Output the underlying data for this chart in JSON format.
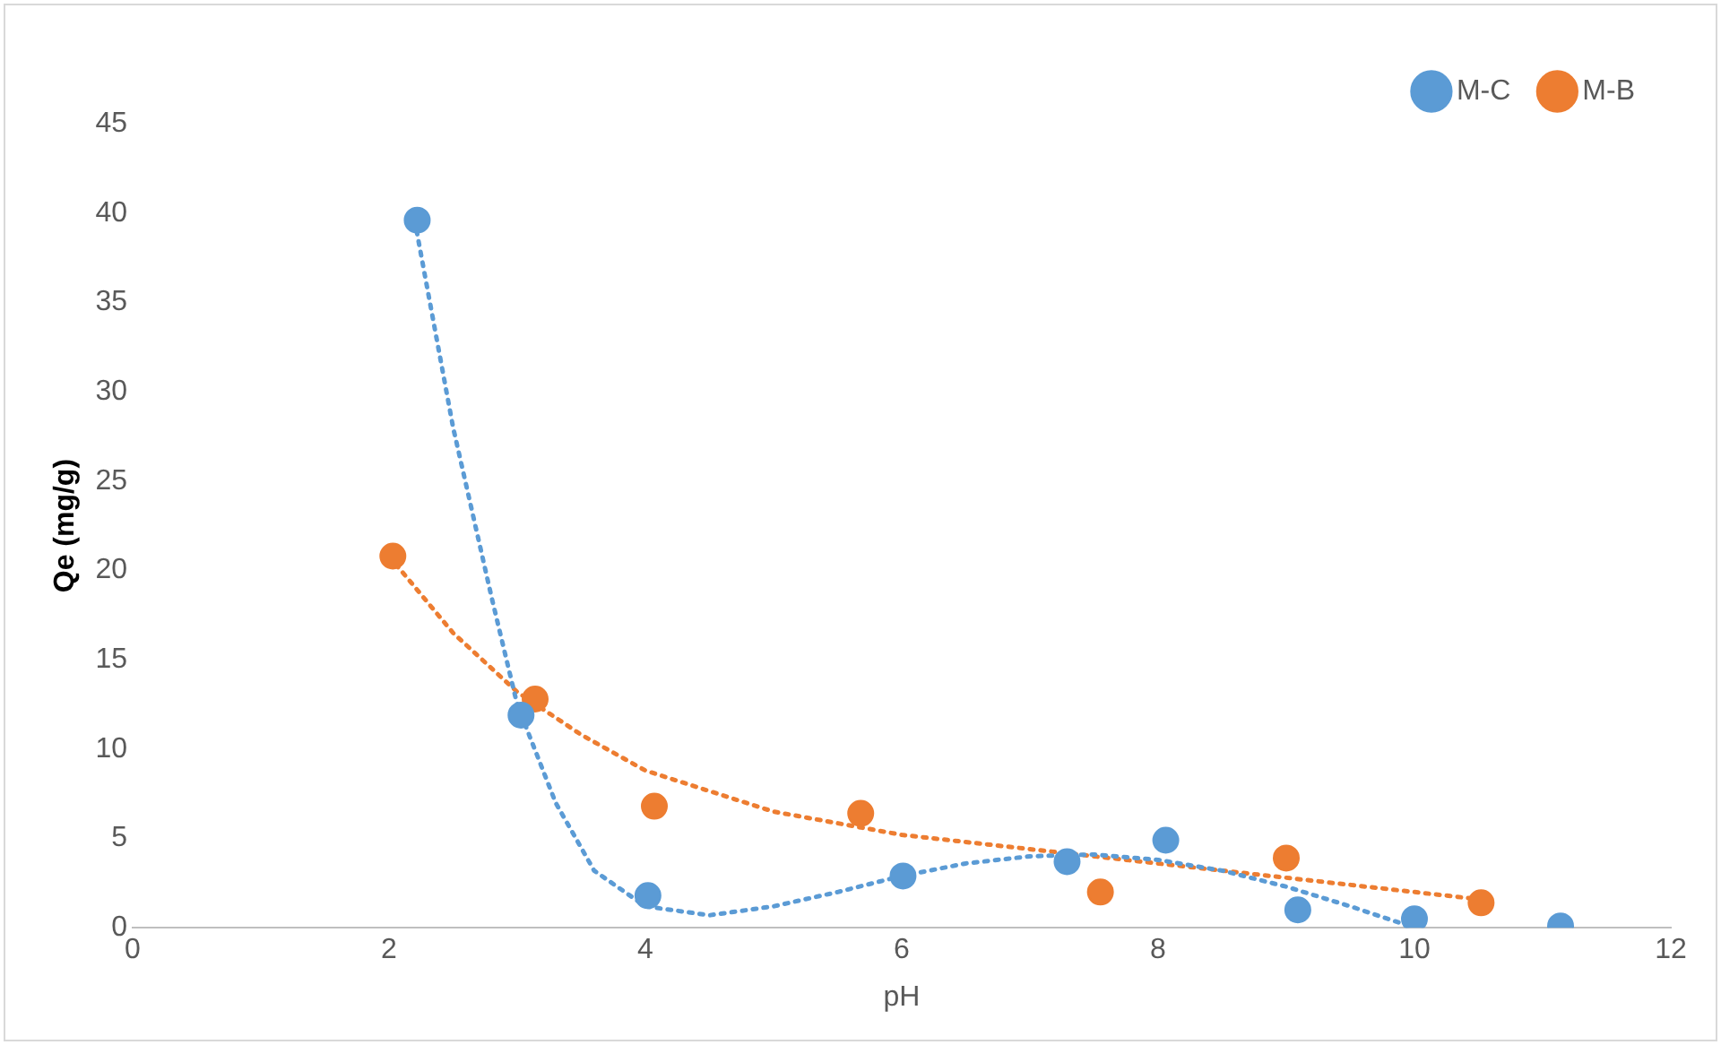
{
  "chart_data": {
    "type": "scatter",
    "xlabel": "pH",
    "ylabel": "Qe (mg/g)",
    "xlim": [
      0,
      12
    ],
    "xticks": [
      0,
      2,
      4,
      6,
      8,
      10,
      12
    ],
    "ylim": [
      0,
      45
    ],
    "yticks": [
      0,
      5,
      10,
      15,
      20,
      25,
      30,
      35,
      40,
      45
    ],
    "grid": false,
    "legend": "top right",
    "marker": "circle",
    "series": [
      {
        "name": "M-C",
        "color": "#5b9bd5",
        "x": [
          2.22,
          3.03,
          4.02,
          6.01,
          7.29,
          8.06,
          9.09,
          10.0,
          11.14
        ],
        "values": [
          39.6,
          11.9,
          1.8,
          2.9,
          3.7,
          4.9,
          1.0,
          0.5,
          0.1
        ]
      },
      {
        "name": "M-B",
        "color": "#ed7d31",
        "x": [
          2.03,
          3.14,
          4.07,
          5.68,
          7.55,
          9.0,
          10.52
        ],
        "values": [
          20.8,
          12.8,
          6.8,
          6.4,
          2.0,
          3.9,
          1.4
        ]
      },
      {
        "type": "line",
        "color": "#5b9bd5",
        "line_style": "dotted",
        "marker": "none",
        "x": [
          2.2,
          2.5,
          2.8,
          3.0,
          3.3,
          3.6,
          4.0,
          4.5,
          5.0,
          5.5,
          6.0,
          6.5,
          7.0,
          7.5,
          8.0,
          8.5,
          9.0,
          9.5,
          10.0
        ],
        "values": [
          39.6,
          28,
          18.5,
          12.5,
          7,
          3.2,
          1.2,
          0.7,
          1.2,
          2.0,
          2.9,
          3.6,
          4.0,
          4.1,
          3.8,
          3.2,
          2.3,
          1.2,
          0.0
        ]
      },
      {
        "type": "line",
        "color": "#ed7d31",
        "line_style": "dotted",
        "marker": "none",
        "x": [
          2,
          2.5,
          3,
          3.5,
          4,
          5,
          6,
          7,
          8,
          9,
          10,
          10.5
        ],
        "values": [
          20.8,
          16.5,
          13.2,
          10.8,
          8.8,
          6.5,
          5.2,
          4.4,
          3.6,
          2.8,
          2.0,
          1.6
        ]
      }
    ]
  }
}
